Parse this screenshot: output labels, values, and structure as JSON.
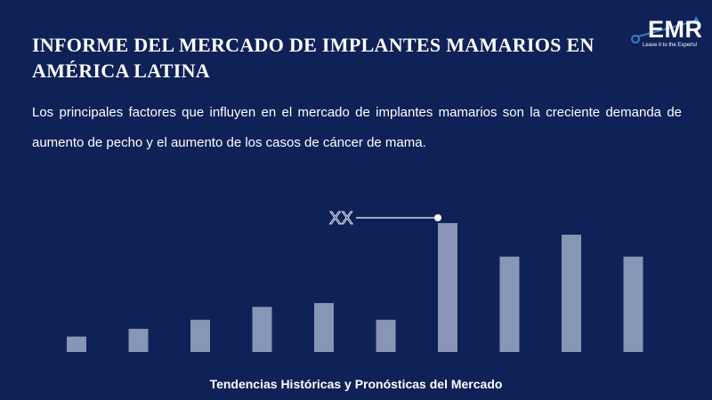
{
  "header": {
    "title": "INFORME DEL MERCADO DE IMPLANTES MAMARIOS EN AMÉRICA LATINA",
    "description": "Los principales factores que influyen en el mercado de implantes mamarios son la creciente demanda de aumento de pecho y el aumento de los casos de cáncer de mama."
  },
  "logo": {
    "text": "EMR",
    "tagline": "Leave it to the Experts!"
  },
  "footer": {
    "caption": "Tendencias Históricas y Pronósticas del Mercado"
  },
  "colors": {
    "background": "#0f2157",
    "bar": "#8696b4",
    "text": "#ffffff",
    "logo_accent": "#3a7fc4"
  },
  "chart_data": {
    "type": "bar",
    "categories": [
      "",
      "",
      "",
      "",
      "",
      "",
      "",
      "",
      "",
      ""
    ],
    "values": [
      12,
      18,
      25,
      35,
      38,
      25,
      100,
      74,
      91,
      74
    ],
    "ylim": [
      0,
      100
    ],
    "annotation": {
      "text": "XX",
      "target_index": 6
    },
    "grid": false,
    "legend": "none"
  }
}
